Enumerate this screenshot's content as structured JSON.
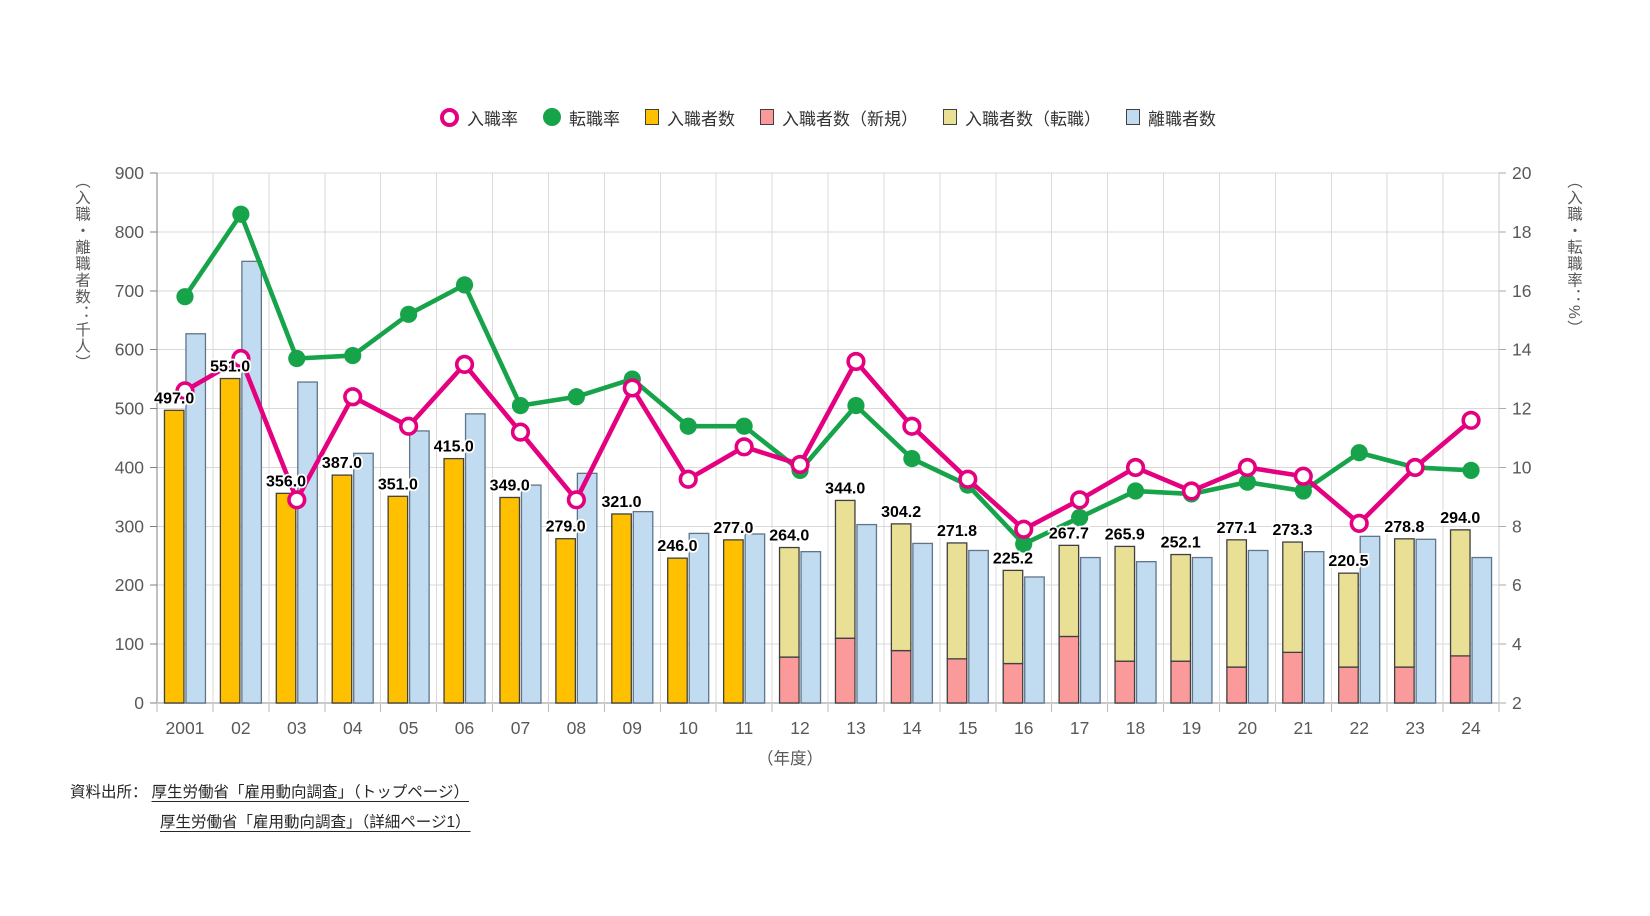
{
  "legend": {
    "items": [
      {
        "label": "入職率",
        "marker": "open-circle",
        "color": "#e4007f"
      },
      {
        "label": "転職率",
        "marker": "filled-circle",
        "color": "#17a34a"
      },
      {
        "label": "入職者数",
        "marker": "square",
        "color": "#ffc000"
      },
      {
        "label": "入職者数（新規）",
        "marker": "square",
        "color": "#fa9a9a"
      },
      {
        "label": "入職者数（転職）",
        "marker": "square",
        "color": "#e9e096"
      },
      {
        "label": "離職者数",
        "marker": "square",
        "color": "#c1dbf1"
      }
    ]
  },
  "axes": {
    "left": {
      "title": "（入職・離職者数：千人）",
      "range": [
        0,
        900
      ],
      "ticks": [
        0,
        100,
        200,
        300,
        400,
        500,
        600,
        700,
        800,
        900
      ]
    },
    "right": {
      "title": "（入職・転職率：%）",
      "range": [
        2,
        20
      ],
      "ticks": [
        2,
        4,
        6,
        8,
        10,
        12,
        14,
        16,
        18,
        20
      ]
    },
    "x": {
      "title": "（年度）",
      "labels": [
        "2001",
        "02",
        "03",
        "04",
        "05",
        "06",
        "07",
        "08",
        "09",
        "10",
        "11",
        "12",
        "13",
        "14",
        "15",
        "16",
        "17",
        "18",
        "19",
        "20",
        "21",
        "22",
        "23",
        "24"
      ]
    }
  },
  "chart_data": {
    "type": "combo bar + line",
    "categories": [
      "2001",
      "02",
      "03",
      "04",
      "05",
      "06",
      "07",
      "08",
      "09",
      "10",
      "11",
      "12",
      "13",
      "14",
      "15",
      "16",
      "17",
      "18",
      "19",
      "20",
      "21",
      "22",
      "23",
      "24"
    ],
    "grid": true,
    "legend_position": "top",
    "left_ylim": [
      0,
      900
    ],
    "right_ylim": [
      2,
      20
    ],
    "series": [
      {
        "name": "入職率",
        "type": "line",
        "axis": "right",
        "unit": "%",
        "color": "#e4007f",
        "marker": "open-circle",
        "values": [
          12.6,
          13.7,
          8.9,
          12.4,
          11.4,
          13.5,
          11.2,
          8.9,
          12.7,
          9.6,
          10.7,
          10.1,
          13.6,
          11.4,
          9.6,
          7.9,
          8.9,
          10.0,
          9.2,
          10.0,
          9.7,
          8.1,
          10.0,
          11.6
        ]
      },
      {
        "name": "転職率",
        "type": "line",
        "axis": "right",
        "unit": "%",
        "color": "#17a34a",
        "marker": "filled-circle",
        "values": [
          15.8,
          18.6,
          13.7,
          13.8,
          15.2,
          16.2,
          12.1,
          12.4,
          13.0,
          11.4,
          11.4,
          9.9,
          12.1,
          10.3,
          9.4,
          7.4,
          8.3,
          9.2,
          9.1,
          9.5,
          9.2,
          10.5,
          10.0,
          9.9
        ]
      },
      {
        "name": "入職者数",
        "type": "bar",
        "axis": "left",
        "unit": "千人",
        "color": "#ffc000",
        "values": [
          497,
          551,
          356,
          387,
          351,
          415,
          349,
          279,
          321,
          246,
          277,
          null,
          null,
          null,
          null,
          null,
          null,
          null,
          null,
          null,
          null,
          null,
          null,
          null
        ]
      },
      {
        "name": "入職者数（新規）",
        "type": "bar",
        "stack": "hire",
        "axis": "left",
        "unit": "千人",
        "color": "#fa9a9a",
        "values": [
          null,
          null,
          null,
          null,
          null,
          null,
          null,
          null,
          null,
          null,
          null,
          78,
          110,
          89,
          75,
          67,
          113,
          71,
          71,
          61,
          86,
          61,
          61,
          80
        ]
      },
      {
        "name": "入職者数（転職）",
        "type": "bar",
        "stack": "hire",
        "axis": "left",
        "unit": "千人",
        "color": "#e9e096",
        "values": [
          null,
          null,
          null,
          null,
          null,
          null,
          null,
          null,
          null,
          null,
          null,
          186.0,
          234.0,
          215.2,
          196.8,
          158.2,
          154.7,
          194.9,
          181.1,
          216.1,
          187.3,
          159.5,
          217.8,
          214.0
        ]
      },
      {
        "name": "離職者数",
        "type": "bar",
        "axis": "left",
        "unit": "千人",
        "color": "#c1dbf1",
        "values": [
          627,
          750,
          545,
          424,
          462,
          491,
          370,
          390,
          325,
          288,
          287,
          257,
          303,
          271,
          259,
          214,
          247,
          240,
          247,
          259,
          257,
          283,
          278,
          247
        ]
      }
    ],
    "bar_value_labels": [
      "497.0",
      "551.0",
      "356.0",
      "387.0",
      "351.0",
      "415.0",
      "349.0",
      "279.0",
      "321.0",
      "246.0",
      "277.0",
      "264.0",
      "344.0",
      "304.2",
      "271.8",
      "225.2",
      "267.7",
      "265.9",
      "252.1",
      "277.1",
      "273.3",
      "220.5",
      "278.8",
      "294.0"
    ]
  },
  "source": {
    "prefix": "資料出所：",
    "links": [
      "厚生労働省「雇用動向調査」（トップページ）",
      "厚生労働省「雇用動向調査」（詳細ページ1）"
    ]
  }
}
